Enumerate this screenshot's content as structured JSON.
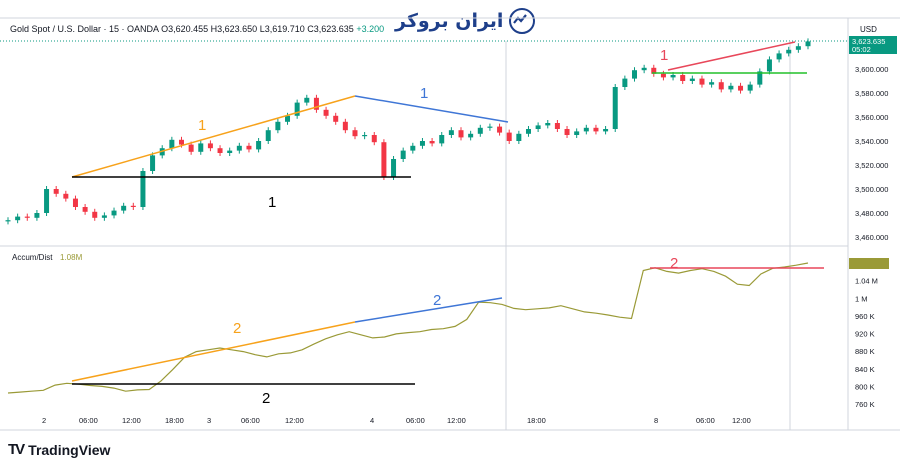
{
  "header": {
    "symbol": "Gold Spot / U.S. Dollar · 15 · OANDA",
    "open": "O3,620.455",
    "high": "H3,623.650",
    "low": "L3,619.710",
    "close": "C3,623.635",
    "change": "+3.200"
  },
  "brand_text": "ایران بروکر",
  "currency": "USD",
  "price_tag": {
    "value": "3,623.635",
    "countdown": "05:02"
  },
  "indicator_label": "Accum/Dist",
  "indicator_value": "1.08M",
  "footer_logo": "TradingView",
  "colors": {
    "orange": "#f7a21b",
    "blue": "#3f76d6",
    "red": "#e8475a",
    "green": "#22c02a",
    "black": "#000000",
    "up": "#089981",
    "down": "#f23645",
    "ad_line": "#9a9a37"
  },
  "annotations": {
    "price_orange": "1",
    "price_blue": "1",
    "price_red": "1",
    "price_black": "1",
    "ad_orange": "2",
    "ad_blue": "2",
    "ad_red": "2",
    "ad_black": "2"
  },
  "chart_data": [
    {
      "type": "candlestick",
      "title": "Gold Spot / U.S. Dollar · 15 · OANDA",
      "ylabel": "USD",
      "ylim": [
        3450,
        3630
      ],
      "y_ticks": [
        "3,600.000",
        "3,580.000",
        "3,560.000",
        "3,540.000",
        "3,520.000",
        "3,500.000",
        "3,480.000",
        "3,460.000"
      ],
      "x_ticks": [
        "2",
        "06:00",
        "12:00",
        "18:00",
        "3",
        "06:00",
        "12:00",
        "4",
        "06:00",
        "12:00",
        "18:00",
        "8",
        "06:00",
        "12:00"
      ],
      "close_path": [
        3474,
        3477,
        3476,
        3480,
        3500,
        3496,
        3492,
        3485,
        3481,
        3476,
        3478,
        3482,
        3486,
        3485,
        3515,
        3528,
        3534,
        3541,
        3537,
        3531,
        3538,
        3534,
        3530,
        3532,
        3536,
        3533,
        3540,
        3549,
        3556,
        3561,
        3572,
        3576,
        3566,
        3561,
        3556,
        3549,
        3544,
        3545,
        3539,
        3510,
        3525,
        3532,
        3536,
        3540,
        3538,
        3545,
        3549,
        3543,
        3546,
        3551,
        3552,
        3547,
        3540,
        3546,
        3550,
        3553,
        3555,
        3550,
        3545,
        3548,
        3551,
        3548,
        3550,
        3585,
        3592,
        3599,
        3601,
        3596,
        3593,
        3595,
        3590,
        3592,
        3587,
        3589,
        3583,
        3586,
        3582,
        3587,
        3598,
        3608,
        3613,
        3616,
        3619,
        3623
      ],
      "last_price": 3623.635
    },
    {
      "type": "line",
      "title": "Accum/Dist",
      "series": [
        {
          "name": "Accum/Dist",
          "values": [
            0.785,
            0.787,
            0.789,
            0.791,
            0.803,
            0.807,
            0.805,
            0.802,
            0.8,
            0.796,
            0.789,
            0.792,
            0.793,
            0.812,
            0.838,
            0.866,
            0.879,
            0.883,
            0.887,
            0.883,
            0.879,
            0.872,
            0.867,
            0.874,
            0.876,
            0.883,
            0.896,
            0.908,
            0.917,
            0.924,
            0.917,
            0.91,
            0.912,
            0.919,
            0.922,
            0.924,
            0.929,
            0.931,
            0.936,
            0.952,
            0.991,
            0.99,
            0.986,
            0.977,
            0.974,
            0.976,
            0.978,
            0.983,
            0.976,
            0.969,
            0.966,
            0.962,
            0.957,
            0.954,
            1.063,
            1.069,
            1.061,
            1.057,
            1.063,
            1.067,
            1.061,
            1.05,
            1.032,
            1.029,
            1.055,
            1.068,
            1.071,
            1.075,
            1.08
          ]
        }
      ],
      "ylim": [
        0.75,
        1.09
      ],
      "y_ticks": [
        "1.08 M",
        "1.04 M",
        "1 M",
        "960 K",
        "920 K",
        "880 K",
        "840 K",
        "800 K",
        "760 K"
      ],
      "current": "1.08M"
    }
  ]
}
